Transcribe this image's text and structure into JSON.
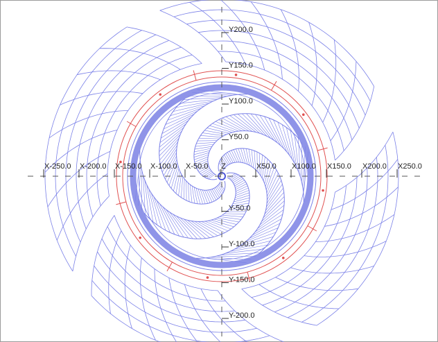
{
  "axes": {
    "x_labels": [
      "X-250.0",
      "X-200.0",
      "X-150.0",
      "X-100.0",
      "X-50.0",
      "Z",
      "X50.0",
      "X100.0",
      "X150.0",
      "X200.0",
      "X250.0"
    ],
    "y_labels": [
      "Y200.0",
      "Y150.0",
      "Y100.0",
      "Y50.0",
      "Y-50.0",
      "Y-100.0",
      "Y-150.0",
      "Y-200.0"
    ]
  }
}
